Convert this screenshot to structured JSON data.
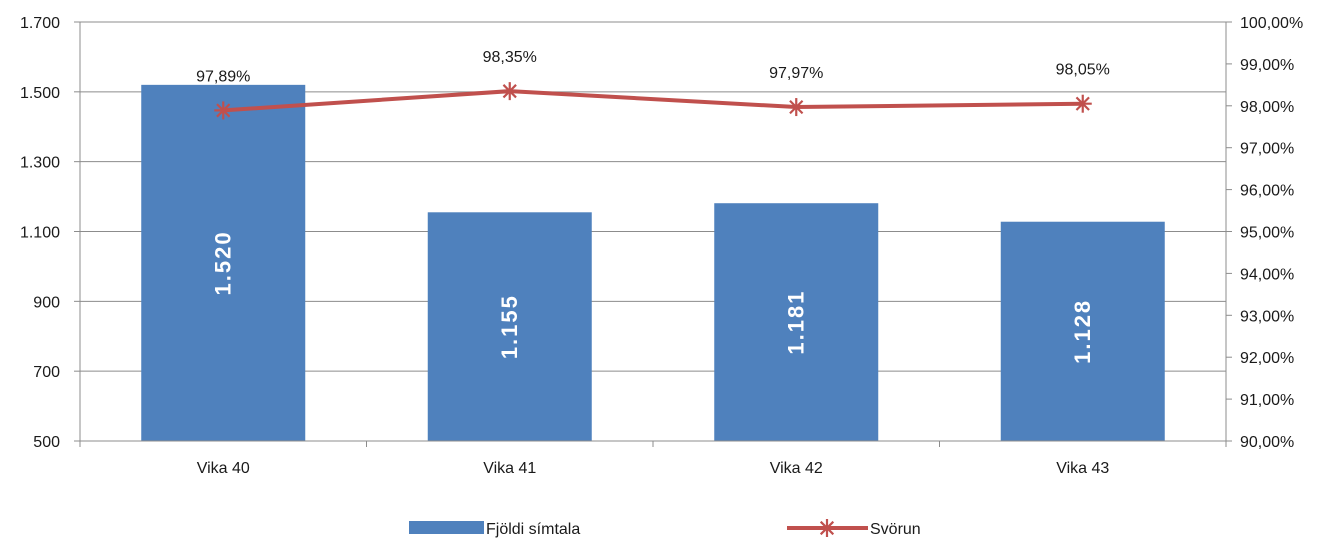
{
  "chart_data": {
    "type": "bar",
    "categories": [
      "Vika 40",
      "Vika 41",
      "Vika 42",
      "Vika 43"
    ],
    "series": [
      {
        "name": "Fjöldi símtala",
        "type": "bar",
        "axis": "left",
        "values": [
          1520,
          1155,
          1181,
          1128
        ],
        "labels": [
          "1.520",
          "1.155",
          "1.181",
          "1.128"
        ],
        "color": "#4f81bd"
      },
      {
        "name": "Svörun",
        "type": "line",
        "axis": "right",
        "values": [
          97.89,
          98.35,
          97.97,
          98.05
        ],
        "labels": [
          "97,89%",
          "98,35%",
          "97,97%",
          "98,05%"
        ],
        "color": "#c0504d",
        "marker": "star"
      }
    ],
    "left_axis": {
      "ylim": [
        500,
        1700
      ],
      "ticks": [
        500,
        700,
        900,
        1100,
        1300,
        1500,
        1700
      ],
      "tick_labels": [
        "500",
        "700",
        "900",
        "1.100",
        "1.300",
        "1.500",
        "1.700"
      ]
    },
    "right_axis": {
      "ylim": [
        90,
        100
      ],
      "ticks": [
        90,
        91,
        92,
        93,
        94,
        95,
        96,
        97,
        98,
        99,
        100
      ],
      "tick_labels": [
        "90,00%",
        "91,00%",
        "92,00%",
        "93,00%",
        "94,00%",
        "95,00%",
        "96,00%",
        "97,00%",
        "98,00%",
        "99,00%",
        "100,00%"
      ]
    },
    "grid": true,
    "legend_position": "bottom"
  }
}
